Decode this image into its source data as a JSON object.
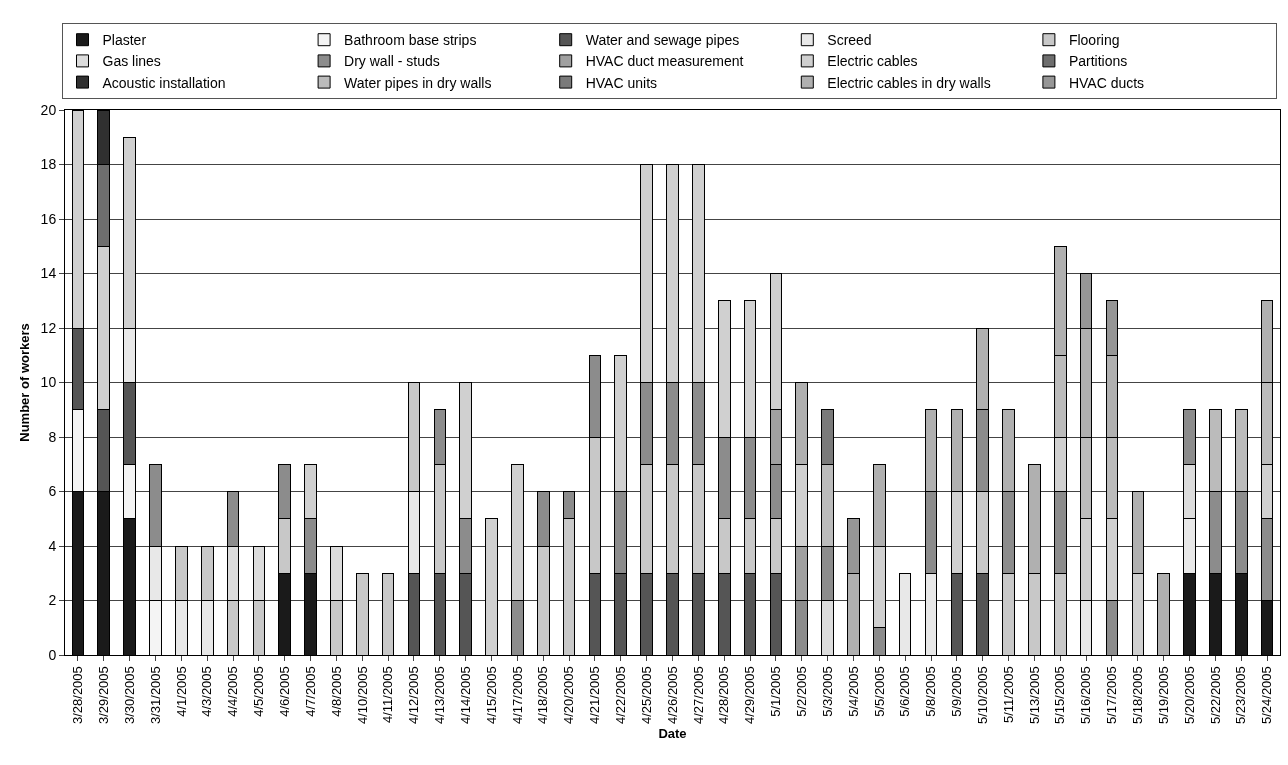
{
  "chart_data": {
    "type": "bar",
    "stacked": true,
    "xlabel": "Date",
    "ylabel": "Number of workers",
    "categories": [
      "3/28/2005",
      "3/29/2005",
      "3/30/2005",
      "3/31/2005",
      "4/1/2005",
      "4/3/2005",
      "4/4/2005",
      "4/5/2005",
      "4/6/2005",
      "4/7/2005",
      "4/8/2005",
      "4/10/2005",
      "4/11/2005",
      "4/12/2005",
      "4/13/2005",
      "4/14/2005",
      "4/15/2005",
      "4/17/2005",
      "4/18/2005",
      "4/20/2005",
      "4/21/2005",
      "4/22/2005",
      "4/25/2005",
      "4/26/2005",
      "4/27/2005",
      "4/28/2005",
      "4/29/2005",
      "5/1/2005",
      "5/2/2005",
      "5/3/2005",
      "5/4/2005",
      "5/5/2005",
      "5/6/2005",
      "5/8/2005",
      "5/9/2005",
      "5/10/2005",
      "5/11/2005",
      "5/13/2005",
      "5/15/2005",
      "5/16/2005",
      "5/17/2005",
      "5/18/2005",
      "5/19/2005",
      "5/20/2005",
      "5/22/2005",
      "5/23/2005",
      "5/24/2005"
    ],
    "series": [
      {
        "name": "Plaster",
        "color": "#1a1a1a",
        "values": [
          6,
          6,
          5,
          null,
          null,
          null,
          null,
          null,
          3,
          3,
          null,
          null,
          null,
          null,
          null,
          null,
          null,
          null,
          null,
          null,
          null,
          null,
          null,
          null,
          null,
          null,
          null,
          null,
          null,
          null,
          null,
          null,
          null,
          null,
          null,
          null,
          null,
          null,
          null,
          null,
          null,
          null,
          null,
          3,
          3,
          3,
          2
        ]
      },
      {
        "name": "Bathroom base strips",
        "color": "#f4f4f4",
        "values": [
          3,
          null,
          2,
          2,
          null,
          null,
          null,
          null,
          null,
          null,
          null,
          null,
          null,
          null,
          null,
          null,
          null,
          null,
          null,
          null,
          null,
          null,
          null,
          null,
          null,
          null,
          null,
          null,
          null,
          null,
          null,
          null,
          null,
          null,
          null,
          null,
          null,
          null,
          null,
          null,
          null,
          null,
          null,
          null,
          null,
          null,
          null
        ]
      },
      {
        "name": "Water and sewage pipes",
        "color": "#555555",
        "values": [
          3,
          3,
          3,
          null,
          null,
          null,
          null,
          null,
          null,
          null,
          null,
          null,
          null,
          3,
          3,
          3,
          null,
          null,
          null,
          null,
          3,
          3,
          3,
          3,
          3,
          3,
          3,
          3,
          null,
          null,
          null,
          null,
          null,
          null,
          3,
          3,
          null,
          null,
          null,
          null,
          null,
          null,
          null,
          null,
          null,
          null,
          null
        ]
      },
      {
        "name": "Screed",
        "color": "#e8e8e8",
        "values": [
          null,
          null,
          2,
          2,
          2,
          2,
          null,
          null,
          null,
          null,
          null,
          null,
          null,
          3,
          null,
          null,
          null,
          null,
          null,
          null,
          null,
          null,
          null,
          null,
          null,
          null,
          null,
          null,
          null,
          null,
          null,
          null,
          3,
          3,
          null,
          null,
          null,
          null,
          null,
          2,
          null,
          null,
          null,
          2,
          null,
          null,
          null
        ]
      },
      {
        "name": "Flooring",
        "color": "#c8c8c8",
        "values": [
          null,
          null,
          null,
          null,
          2,
          2,
          2,
          2,
          2,
          null,
          2,
          3,
          3,
          4,
          4,
          null,
          null,
          null,
          4,
          5,
          5,
          null,
          4,
          4,
          4,
          2,
          2,
          2,
          null,
          null,
          null,
          null,
          null,
          null,
          null,
          3,
          3,
          3,
          3,
          null,
          null,
          null,
          null,
          null,
          null,
          null,
          null
        ]
      },
      {
        "name": "Gas lines",
        "color": "#dcdcdc",
        "values": [
          null,
          null,
          null,
          null,
          null,
          null,
          2,
          2,
          null,
          null,
          2,
          null,
          null,
          null,
          null,
          null,
          null,
          null,
          null,
          null,
          null,
          null,
          null,
          null,
          null,
          null,
          null,
          null,
          null,
          2,
          null,
          null,
          null,
          null,
          null,
          null,
          null,
          null,
          null,
          null,
          null,
          null,
          null,
          2,
          null,
          null,
          null
        ]
      },
      {
        "name": "Dry wall - studs",
        "color": "#8c8c8c",
        "values": [
          null,
          null,
          null,
          3,
          null,
          null,
          2,
          null,
          2,
          2,
          null,
          null,
          null,
          null,
          2,
          2,
          null,
          2,
          2,
          1,
          3,
          3,
          3,
          3,
          3,
          3,
          3,
          2,
          2,
          2,
          null,
          1,
          null,
          3,
          null,
          3,
          3,
          null,
          3,
          null,
          2,
          null,
          null,
          2,
          3,
          3,
          3
        ]
      },
      {
        "name": "HVAC duct measurement",
        "color": "#a0a0a0",
        "values": [
          null,
          null,
          null,
          null,
          null,
          null,
          null,
          null,
          null,
          null,
          null,
          null,
          null,
          null,
          null,
          null,
          null,
          null,
          null,
          null,
          null,
          null,
          null,
          null,
          null,
          null,
          null,
          2,
          2,
          null,
          null,
          null,
          null,
          null,
          null,
          null,
          null,
          null,
          null,
          null,
          null,
          null,
          null,
          null,
          null,
          null,
          null
        ]
      },
      {
        "name": "Electric cables",
        "color": "#d0d0d0",
        "values": [
          8,
          6,
          7,
          null,
          null,
          null,
          null,
          null,
          null,
          2,
          null,
          null,
          null,
          null,
          null,
          5,
          5,
          5,
          null,
          null,
          null,
          5,
          8,
          8,
          8,
          5,
          5,
          5,
          3,
          null,
          null,
          3,
          null,
          null,
          3,
          null,
          null,
          null,
          2,
          3,
          3,
          3,
          null,
          null,
          null,
          null,
          2
        ]
      },
      {
        "name": "Partitions",
        "color": "#6e6e6e",
        "values": [
          null,
          3,
          null,
          null,
          null,
          null,
          null,
          null,
          null,
          null,
          null,
          null,
          null,
          null,
          null,
          null,
          null,
          null,
          null,
          null,
          null,
          null,
          null,
          null,
          null,
          null,
          null,
          null,
          null,
          null,
          null,
          null,
          null,
          null,
          null,
          null,
          null,
          null,
          null,
          null,
          null,
          null,
          null,
          null,
          null,
          null,
          null
        ]
      },
      {
        "name": "Acoustic installation",
        "color": "#303030",
        "values": [
          null,
          2,
          null,
          null,
          null,
          null,
          null,
          null,
          null,
          null,
          null,
          null,
          null,
          null,
          null,
          null,
          null,
          null,
          null,
          null,
          null,
          null,
          null,
          null,
          null,
          null,
          null,
          null,
          null,
          null,
          null,
          null,
          null,
          null,
          null,
          null,
          null,
          null,
          null,
          null,
          null,
          null,
          null,
          null,
          null,
          null,
          null
        ]
      },
      {
        "name": "Water pipes in dry walls",
        "color": "#bbbbbb",
        "values": [
          null,
          null,
          null,
          null,
          null,
          null,
          null,
          null,
          null,
          null,
          null,
          null,
          null,
          null,
          null,
          null,
          null,
          null,
          null,
          null,
          null,
          null,
          null,
          null,
          null,
          null,
          null,
          null,
          null,
          3,
          null,
          null,
          null,
          null,
          null,
          null,
          null,
          null,
          3,
          3,
          3,
          null,
          null,
          null,
          3,
          3,
          3
        ]
      },
      {
        "name": "HVAC units",
        "color": "#7a7a7a",
        "values": [
          null,
          null,
          null,
          null,
          null,
          null,
          null,
          null,
          null,
          null,
          null,
          null,
          null,
          null,
          null,
          null,
          null,
          null,
          null,
          null,
          null,
          null,
          null,
          null,
          null,
          null,
          null,
          null,
          null,
          2,
          null,
          null,
          null,
          null,
          null,
          null,
          null,
          null,
          null,
          null,
          null,
          null,
          null,
          null,
          null,
          null,
          null
        ]
      },
      {
        "name": "Electric cables in dry walls",
        "color": "#b0b0b0",
        "values": [
          null,
          null,
          null,
          null,
          null,
          null,
          null,
          null,
          null,
          null,
          null,
          null,
          null,
          null,
          null,
          null,
          null,
          null,
          null,
          null,
          null,
          null,
          null,
          null,
          null,
          null,
          null,
          null,
          3,
          null,
          3,
          3,
          null,
          3,
          3,
          3,
          3,
          4,
          4,
          4,
          3,
          3,
          3,
          null,
          null,
          null,
          3
        ]
      },
      {
        "name": "HVAC ducts",
        "color": "#969696",
        "values": [
          null,
          null,
          null,
          null,
          null,
          null,
          null,
          null,
          null,
          null,
          null,
          null,
          null,
          null,
          null,
          null,
          null,
          null,
          null,
          null,
          null,
          null,
          null,
          null,
          null,
          null,
          null,
          null,
          null,
          null,
          2,
          null,
          null,
          null,
          null,
          null,
          null,
          null,
          null,
          2,
          2,
          null,
          null,
          null,
          null,
          null,
          null
        ]
      }
    ],
    "ylim": [
      0,
      20
    ],
    "yticks": [
      0,
      2,
      4,
      6,
      8,
      10,
      12,
      14,
      16,
      18,
      20
    ],
    "grid": "y",
    "legend": "top"
  }
}
